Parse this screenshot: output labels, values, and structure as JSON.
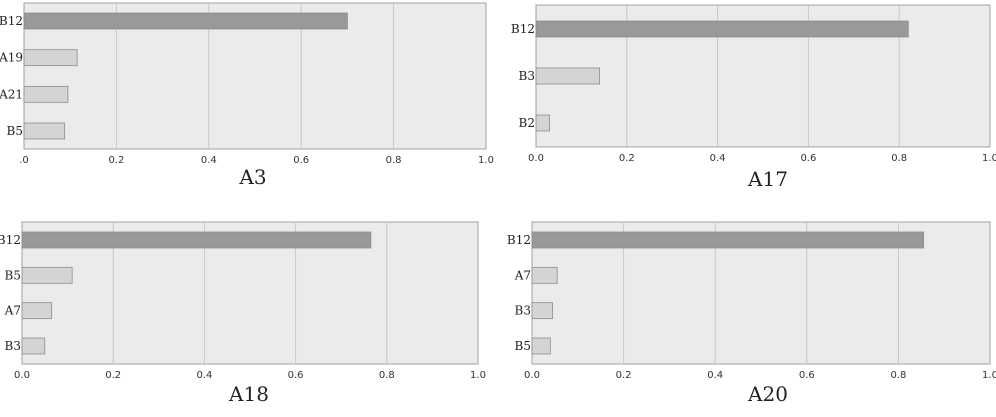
{
  "colors": {
    "highlight_bar": "#999999",
    "other_bar": "#d4d4d4",
    "bar_stroke": "#8c8c8c",
    "plot_bg": "#ebebeb"
  },
  "chart_data": [
    {
      "type": "bar",
      "orientation": "horizontal",
      "caption": "A3",
      "categories": [
        "B12",
        "A19",
        "A21",
        "B5"
      ],
      "values": [
        0.7,
        0.115,
        0.095,
        0.088
      ],
      "xlim": [
        0,
        1.0
      ],
      "xticks": [
        0,
        0.2,
        0.4,
        0.6,
        0.8,
        1.0
      ],
      "xtick_labels": [
        ".0",
        "0.2",
        "0.4",
        "0.6",
        "0.8",
        "1.0"
      ],
      "grid": true
    },
    {
      "type": "bar",
      "orientation": "horizontal",
      "caption": "A17",
      "categories": [
        "B12",
        "B3",
        "B2"
      ],
      "values": [
        0.82,
        0.14,
        0.03
      ],
      "xlim": [
        0,
        1.0
      ],
      "xticks": [
        0,
        0.2,
        0.4,
        0.6,
        0.8,
        1.0
      ],
      "xtick_labels": [
        "0.0",
        "0.2",
        "0.4",
        "0.6",
        "0.8",
        "1.0"
      ],
      "grid": true
    },
    {
      "type": "bar",
      "orientation": "horizontal",
      "caption": "A18",
      "categories": [
        "B12",
        "B5",
        "A7",
        "B3"
      ],
      "values": [
        0.765,
        0.11,
        0.065,
        0.05
      ],
      "xlim": [
        0,
        1.0
      ],
      "xticks": [
        0,
        0.2,
        0.4,
        0.6,
        0.8,
        1.0
      ],
      "xtick_labels": [
        "0.0",
        "0.2",
        "0.4",
        "0.6",
        "0.8",
        "1.0"
      ],
      "grid": true
    },
    {
      "type": "bar",
      "orientation": "horizontal",
      "caption": "A20",
      "categories": [
        "B12",
        "A7",
        "B3",
        "B5"
      ],
      "values": [
        0.855,
        0.055,
        0.045,
        0.04
      ],
      "xlim": [
        0,
        1.0
      ],
      "xticks": [
        0,
        0.2,
        0.4,
        0.6,
        0.8,
        1.0
      ],
      "xtick_labels": [
        "0.0",
        "0.2",
        "0.4",
        "0.6",
        "0.8",
        "1.0"
      ],
      "grid": true
    }
  ]
}
